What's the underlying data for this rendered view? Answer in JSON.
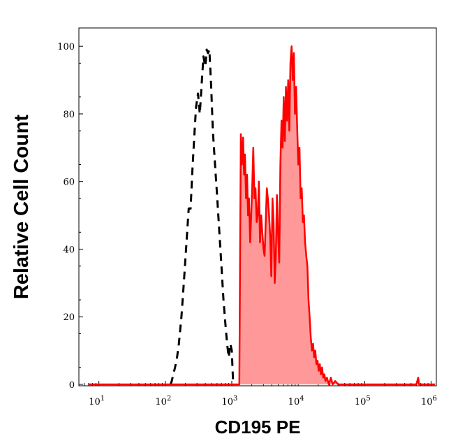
{
  "chart_data": {
    "type": "area",
    "xlabel": "CD195 PE",
    "ylabel": "Relative Cell Count",
    "x_scale": "log",
    "xlim": [
      5,
      1200000
    ],
    "ylim": [
      0,
      105
    ],
    "y_ticks": [
      0,
      20,
      40,
      60,
      80,
      100
    ],
    "y_tick_labels": [
      "0",
      "20",
      "40",
      "60",
      "80",
      "100"
    ],
    "x_ticks": [
      {
        "value": 10,
        "base": "10",
        "exp": "1"
      },
      {
        "value": 100,
        "base": "10",
        "exp": "2"
      },
      {
        "value": 1000,
        "base": "10",
        "exp": "3"
      },
      {
        "value": 10000,
        "base": "10",
        "exp": "4"
      },
      {
        "value": 100000,
        "base": "10",
        "exp": "5"
      },
      {
        "value": 1000000,
        "base": "10",
        "exp": "6"
      }
    ],
    "series": [
      {
        "style": "dashed-outline",
        "color": "#000000",
        "points": [
          [
            120,
            0
          ],
          [
            125,
            1
          ],
          [
            132,
            3
          ],
          [
            140,
            5
          ],
          [
            150,
            8
          ],
          [
            160,
            12
          ],
          [
            175,
            20
          ],
          [
            190,
            30
          ],
          [
            205,
            40
          ],
          [
            225,
            52
          ],
          [
            240,
            52
          ],
          [
            255,
            63
          ],
          [
            270,
            72
          ],
          [
            290,
            82
          ],
          [
            310,
            86
          ],
          [
            330,
            80
          ],
          [
            350,
            88
          ],
          [
            375,
            97
          ],
          [
            400,
            94
          ],
          [
            420,
            99
          ],
          [
            440,
            98
          ],
          [
            460,
            99
          ],
          [
            490,
            88
          ],
          [
            520,
            75
          ],
          [
            560,
            65
          ],
          [
            600,
            56
          ],
          [
            650,
            45
          ],
          [
            700,
            35
          ],
          [
            750,
            25
          ],
          [
            800,
            18
          ],
          [
            850,
            12
          ],
          [
            900,
            8
          ],
          [
            950,
            12
          ],
          [
            1000,
            10
          ],
          [
            1050,
            0
          ]
        ]
      },
      {
        "style": "filled",
        "color": "#ff0000",
        "fill": "#ff9999",
        "points": [
          [
            7,
            0
          ],
          [
            20,
            0
          ],
          [
            50,
            0
          ],
          [
            100,
            0
          ],
          [
            300,
            0
          ],
          [
            1000,
            0
          ],
          [
            1300,
            0
          ],
          [
            1320,
            20
          ],
          [
            1340,
            45
          ],
          [
            1370,
            74
          ],
          [
            1420,
            65
          ],
          [
            1480,
            73
          ],
          [
            1530,
            62
          ],
          [
            1580,
            68
          ],
          [
            1640,
            55
          ],
          [
            1700,
            62
          ],
          [
            1760,
            50
          ],
          [
            1820,
            55
          ],
          [
            1890,
            42
          ],
          [
            1960,
            50
          ],
          [
            2030,
            58
          ],
          [
            2110,
            70
          ],
          [
            2190,
            55
          ],
          [
            2280,
            58
          ],
          [
            2370,
            48
          ],
          [
            2460,
            50
          ],
          [
            2560,
            60
          ],
          [
            2660,
            42
          ],
          [
            2770,
            50
          ],
          [
            2880,
            45
          ],
          [
            3000,
            40
          ],
          [
            3120,
            38
          ],
          [
            3240,
            48
          ],
          [
            3370,
            58
          ],
          [
            3500,
            55
          ],
          [
            3640,
            50
          ],
          [
            3790,
            44
          ],
          [
            3940,
            32
          ],
          [
            4100,
            55
          ],
          [
            4260,
            48
          ],
          [
            4430,
            30
          ],
          [
            4610,
            38
          ],
          [
            4790,
            56
          ],
          [
            4980,
            45
          ],
          [
            5180,
            36
          ],
          [
            5390,
            65
          ],
          [
            5600,
            78
          ],
          [
            5820,
            70
          ],
          [
            6050,
            85
          ],
          [
            6290,
            72
          ],
          [
            6540,
            88
          ],
          [
            6800,
            78
          ],
          [
            7070,
            90
          ],
          [
            7350,
            75
          ],
          [
            7640,
            95
          ],
          [
            7950,
            100
          ],
          [
            8270,
            90
          ],
          [
            8600,
            98
          ],
          [
            8940,
            80
          ],
          [
            9300,
            88
          ],
          [
            9670,
            75
          ],
          [
            10050,
            65
          ],
          [
            10450,
            70
          ],
          [
            10870,
            55
          ],
          [
            11300,
            58
          ],
          [
            11750,
            48
          ],
          [
            12220,
            50
          ],
          [
            12710,
            42
          ],
          [
            13220,
            38
          ],
          [
            13750,
            35
          ],
          [
            14300,
            25
          ],
          [
            14870,
            20
          ],
          [
            15460,
            14
          ],
          [
            16080,
            10
          ],
          [
            16720,
            12
          ],
          [
            17390,
            8
          ],
          [
            18080,
            10
          ],
          [
            18800,
            6
          ],
          [
            19550,
            7
          ],
          [
            20330,
            4
          ],
          [
            21140,
            6
          ],
          [
            21990,
            3
          ],
          [
            22870,
            5
          ],
          [
            23790,
            2
          ],
          [
            24740,
            3
          ],
          [
            25730,
            1
          ],
          [
            27000,
            2
          ],
          [
            29000,
            0
          ],
          [
            31000,
            2
          ],
          [
            33000,
            0
          ],
          [
            36000,
            1
          ],
          [
            40000,
            0
          ],
          [
            60000,
            0
          ],
          [
            100000,
            0
          ],
          [
            300000,
            0
          ],
          [
            600000,
            0
          ],
          [
            640000,
            2
          ],
          [
            660000,
            0
          ],
          [
            1000000,
            0
          ],
          [
            1150000,
            0
          ]
        ]
      }
    ]
  }
}
